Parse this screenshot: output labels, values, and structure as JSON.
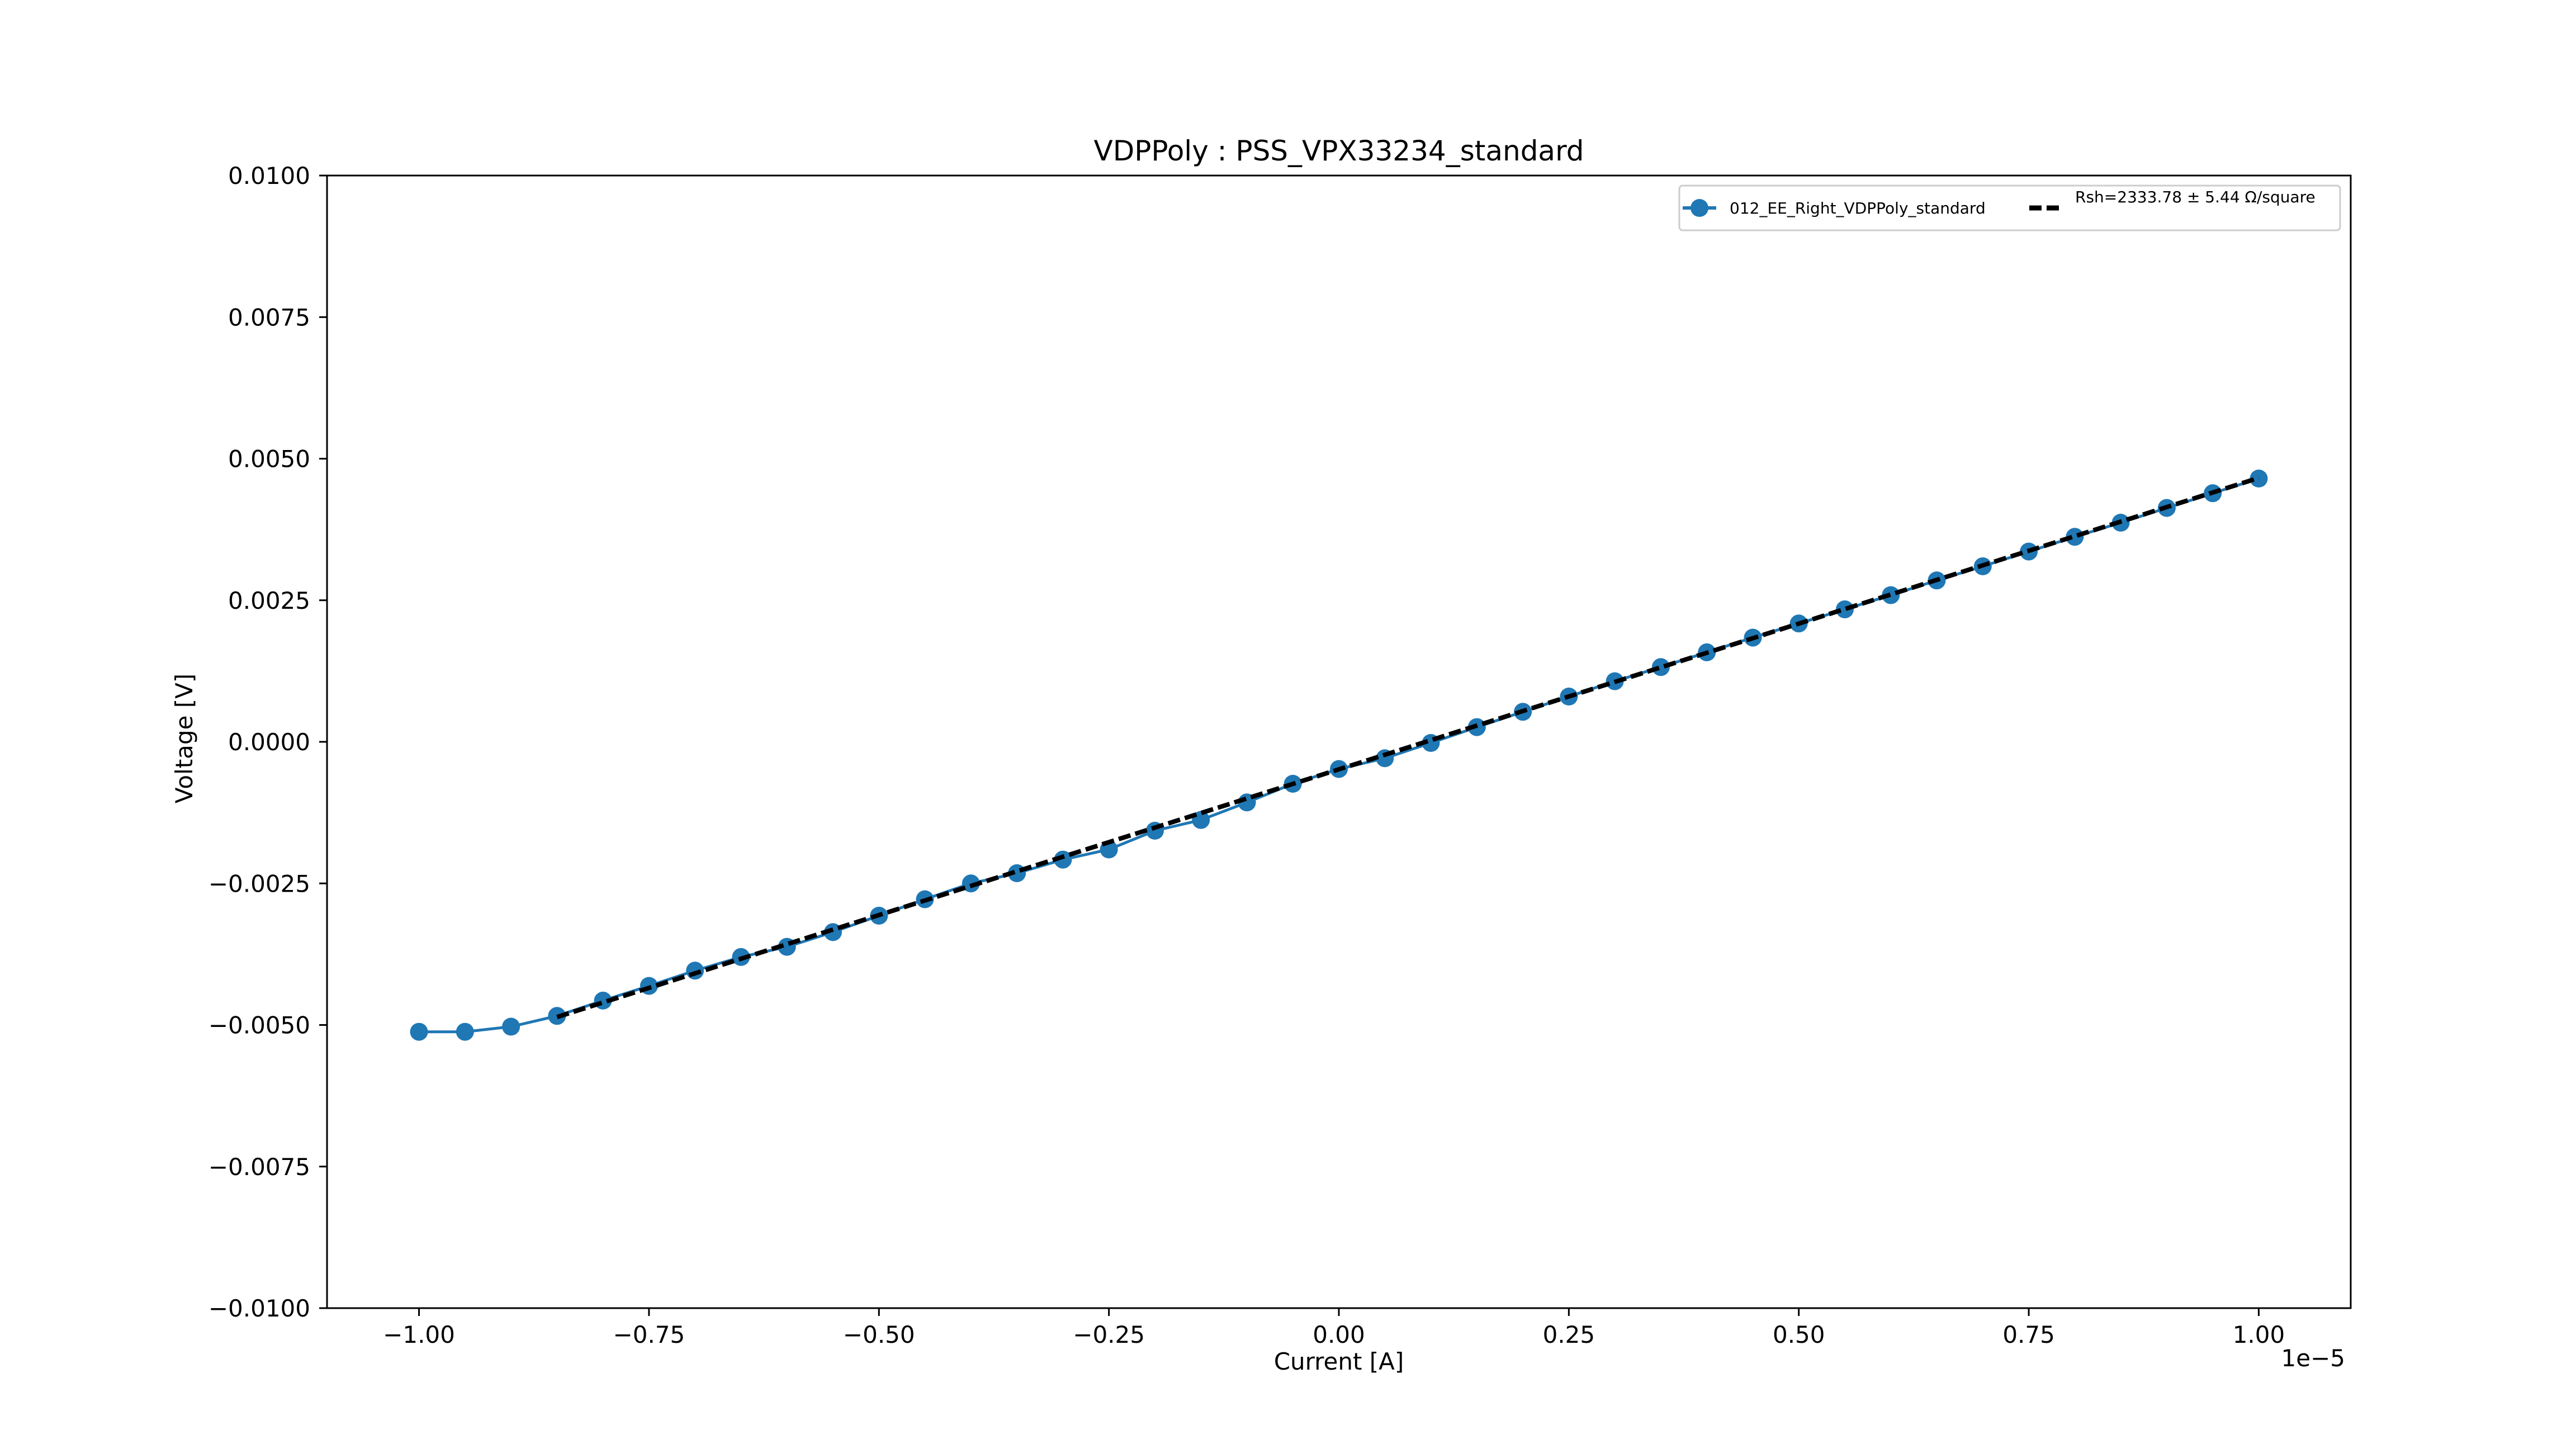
{
  "chart_data": {
    "type": "line",
    "title": "VDPPoly : PSS_VPX33234_standard",
    "xlabel": "Current [A]",
    "ylabel": "Voltage [V]",
    "x_offset_label": "1e−5",
    "xlim": [
      -1.1e-05,
      1.1e-05
    ],
    "ylim": [
      -0.01,
      0.01
    ],
    "x_ticks": [
      -1e-05,
      -7.5e-06,
      -5e-06,
      -2.5e-06,
      0,
      2.5e-06,
      5e-06,
      7.5e-06,
      1e-05
    ],
    "x_tick_labels": [
      "−1.00",
      "−0.75",
      "−0.50",
      "−0.25",
      "0.00",
      "0.25",
      "0.50",
      "0.75",
      "1.00"
    ],
    "y_ticks": [
      -0.01,
      -0.0075,
      -0.005,
      -0.0025,
      0,
      0.0025,
      0.005,
      0.0075,
      0.01
    ],
    "y_tick_labels": [
      "−0.0100",
      "−0.0075",
      "−0.0050",
      "−0.0025",
      "0.0000",
      "0.0025",
      "0.0050",
      "0.0075",
      "0.0100"
    ],
    "grid": false,
    "legend_position": "top-right",
    "series": [
      {
        "name": "012_EE_Right_VDPPoly_standard",
        "style": "line-marker",
        "color": "#1f77b4",
        "x": [
          -1e-05,
          -9.5e-06,
          -9e-06,
          -8.5e-06,
          -8e-06,
          -7.5e-06,
          -7e-06,
          -6.5e-06,
          -6e-06,
          -5.5e-06,
          -5e-06,
          -4.5e-06,
          -4e-06,
          -3.5e-06,
          -3e-06,
          -2.5e-06,
          -2e-06,
          -1.5e-06,
          -1e-06,
          -5e-07,
          0,
          5e-07,
          1e-06,
          1.5e-06,
          2e-06,
          2.5e-06,
          3e-06,
          3.5e-06,
          4e-06,
          4.5e-06,
          5e-06,
          5.5e-06,
          6e-06,
          6.5e-06,
          7e-06,
          7.5e-06,
          8e-06,
          8.5e-06,
          9e-06,
          9.5e-06,
          1e-05
        ],
        "y": [
          -0.00512,
          -0.00512,
          -0.00503,
          -0.00484,
          -0.00457,
          -0.00431,
          -0.00404,
          -0.0038,
          -0.00362,
          -0.00336,
          -0.00307,
          -0.00278,
          -0.0025,
          -0.00232,
          -0.00208,
          -0.0019,
          -0.00157,
          -0.00138,
          -0.00107,
          -0.00074,
          -0.00048,
          -0.00029,
          -2e-05,
          0.00026,
          0.00053,
          0.0008,
          0.00107,
          0.00132,
          0.00158,
          0.00184,
          0.00209,
          0.00234,
          0.00259,
          0.00285,
          0.0031,
          0.00336,
          0.00362,
          0.00387,
          0.00413,
          0.00439,
          0.00465
        ]
      },
      {
        "name": "Rsh=2333.78 ± 5.44 Ω/square",
        "style": "dashed",
        "color": "#000000",
        "x": [
          -8.5e-06,
          1e-05
        ],
        "y": [
          -0.00486,
          0.00466
        ]
      }
    ]
  }
}
